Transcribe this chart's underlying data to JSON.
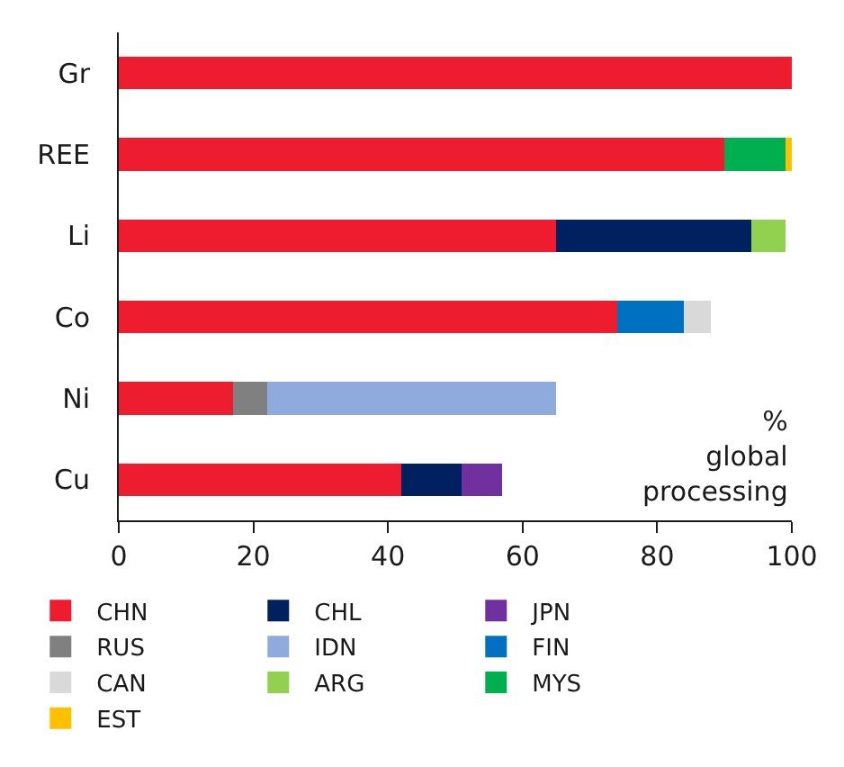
{
  "chart_data": {
    "type": "bar",
    "orientation": "horizontal",
    "stacked": true,
    "categories": [
      "Gr",
      "REE",
      "Li",
      "Co",
      "Ni",
      "Cu"
    ],
    "series": [
      {
        "name": "CHN",
        "color": "#ed1c2e",
        "values": [
          100,
          90,
          65,
          74,
          17,
          42
        ]
      },
      {
        "name": "CHL",
        "color": "#002060",
        "values": [
          null,
          null,
          29,
          null,
          null,
          9
        ]
      },
      {
        "name": "JPN",
        "color": "#7030a0",
        "values": [
          null,
          null,
          null,
          null,
          null,
          6
        ]
      },
      {
        "name": "RUS",
        "color": "#808080",
        "values": [
          null,
          null,
          null,
          null,
          5,
          null
        ]
      },
      {
        "name": "IDN",
        "color": "#8faadc",
        "values": [
          null,
          null,
          null,
          null,
          43,
          null
        ]
      },
      {
        "name": "FIN",
        "color": "#0070c0",
        "values": [
          null,
          null,
          null,
          10,
          null,
          null
        ]
      },
      {
        "name": "CAN",
        "color": "#d9d9d9",
        "values": [
          null,
          null,
          null,
          4,
          null,
          null
        ]
      },
      {
        "name": "ARG",
        "color": "#92d050",
        "values": [
          null,
          null,
          5,
          null,
          null,
          null
        ]
      },
      {
        "name": "MYS",
        "color": "#00b050",
        "values": [
          null,
          9,
          null,
          null,
          null,
          null
        ]
      },
      {
        "name": "EST",
        "color": "#ffc000",
        "values": [
          null,
          1,
          null,
          null,
          null,
          null
        ]
      }
    ],
    "xlim": [
      0,
      100
    ],
    "xticks": [
      0,
      20,
      40,
      60,
      80,
      100
    ],
    "annotations": [
      "%\nglobal\nprocessing"
    ],
    "legend": "bottom"
  }
}
